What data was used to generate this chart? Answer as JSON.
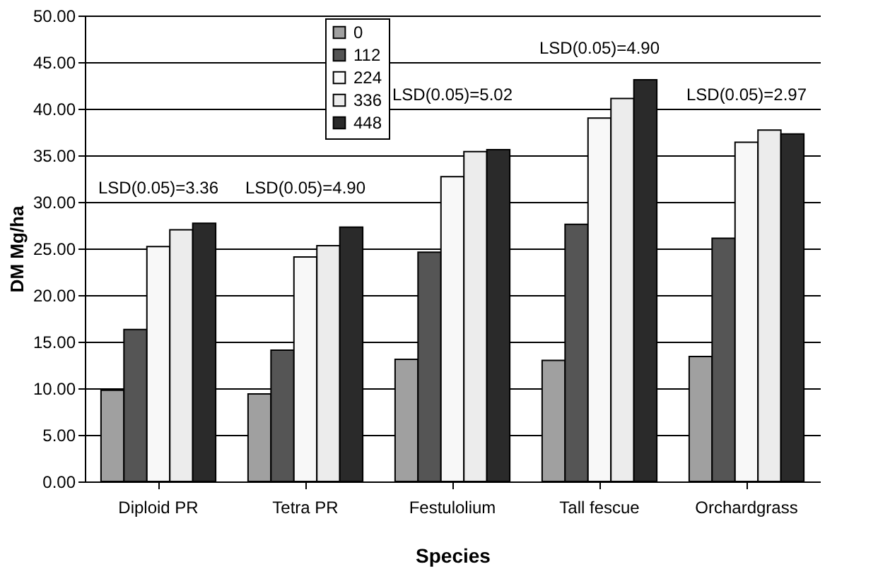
{
  "chart_data": {
    "type": "bar",
    "xlabel": "Species",
    "ylabel": "DM Mg/ha",
    "categories": [
      "Diploid PR",
      "Tetra PR",
      "Festulolium",
      "Tall fescue",
      "Orchardgrass"
    ],
    "series": [
      {
        "name": "0",
        "color": "#a0a0a0",
        "values": [
          9.8,
          9.4,
          13.1,
          13.0,
          13.4
        ]
      },
      {
        "name": "112",
        "color": "#555555",
        "values": [
          16.3,
          14.1,
          24.6,
          27.6,
          26.1
        ]
      },
      {
        "name": "224",
        "color": "#f8f8f8",
        "values": [
          25.2,
          24.1,
          32.7,
          39.0,
          36.4
        ]
      },
      {
        "name": "336",
        "color": "#ececec",
        "values": [
          27.0,
          25.3,
          35.4,
          41.1,
          37.7
        ]
      },
      {
        "name": "448",
        "color": "#2a2a2a",
        "values": [
          27.7,
          27.3,
          35.6,
          43.1,
          37.3
        ]
      }
    ],
    "ylim": [
      0,
      50
    ],
    "yticks": [
      {
        "value": 0,
        "label": "0.00"
      },
      {
        "value": 5,
        "label": "5.00"
      },
      {
        "value": 10,
        "label": "10.00"
      },
      {
        "value": 15,
        "label": "15.00"
      },
      {
        "value": 20,
        "label": "20.00"
      },
      {
        "value": 25,
        "label": "25.00"
      },
      {
        "value": 30,
        "label": "30.00"
      },
      {
        "value": 35,
        "label": "35.00"
      },
      {
        "value": 40,
        "label": "40.00"
      },
      {
        "value": 45,
        "label": "45.00"
      },
      {
        "value": 50,
        "label": "50.00"
      }
    ],
    "grid": "y",
    "legend": "top",
    "annotations": [
      "LSD(0.05)=3.36",
      "LSD(0.05)=4.90",
      "LSD(0.05)=5.02",
      "LSD(0.05)=4.90",
      "LSD(0.05)=2.97"
    ]
  }
}
